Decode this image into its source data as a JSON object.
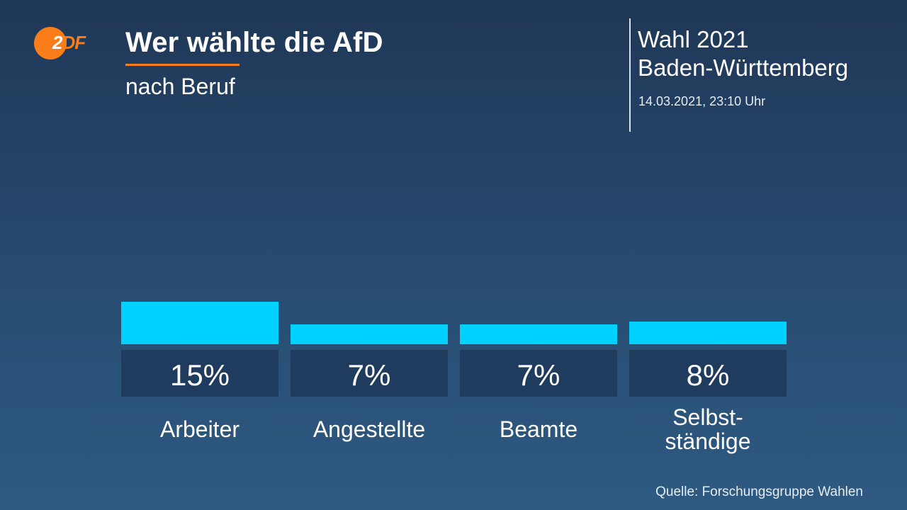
{
  "logo": {
    "text_z": "2",
    "text_rest": "DF",
    "color": "#fa7d19"
  },
  "header": {
    "title": "Wer wählte die AfD",
    "subtitle": "nach Beruf",
    "election": "Wahl 2021",
    "region": "Baden-Württemberg",
    "timestamp": "14.03.2021, 23:10 Uhr"
  },
  "source": "Quelle: Forschungsgruppe Wahlen",
  "colors": {
    "bar": "#00d2ff",
    "label_box": "#1f3c5e",
    "accent": "#fa7d19"
  },
  "chart_data": {
    "type": "bar",
    "title": "Wer wählte die AfD",
    "subtitle": "nach Beruf",
    "categories": [
      "Arbeiter",
      "Angestellte",
      "Beamte",
      "Selbst-\nständige"
    ],
    "values": [
      15,
      7,
      7,
      8
    ],
    "value_labels": [
      "15%",
      "7%",
      "7%",
      "8%"
    ],
    "unit": "%",
    "ylim": [
      0,
      100
    ],
    "xlabel": "",
    "ylabel": "",
    "grid": false,
    "legend": "none"
  }
}
